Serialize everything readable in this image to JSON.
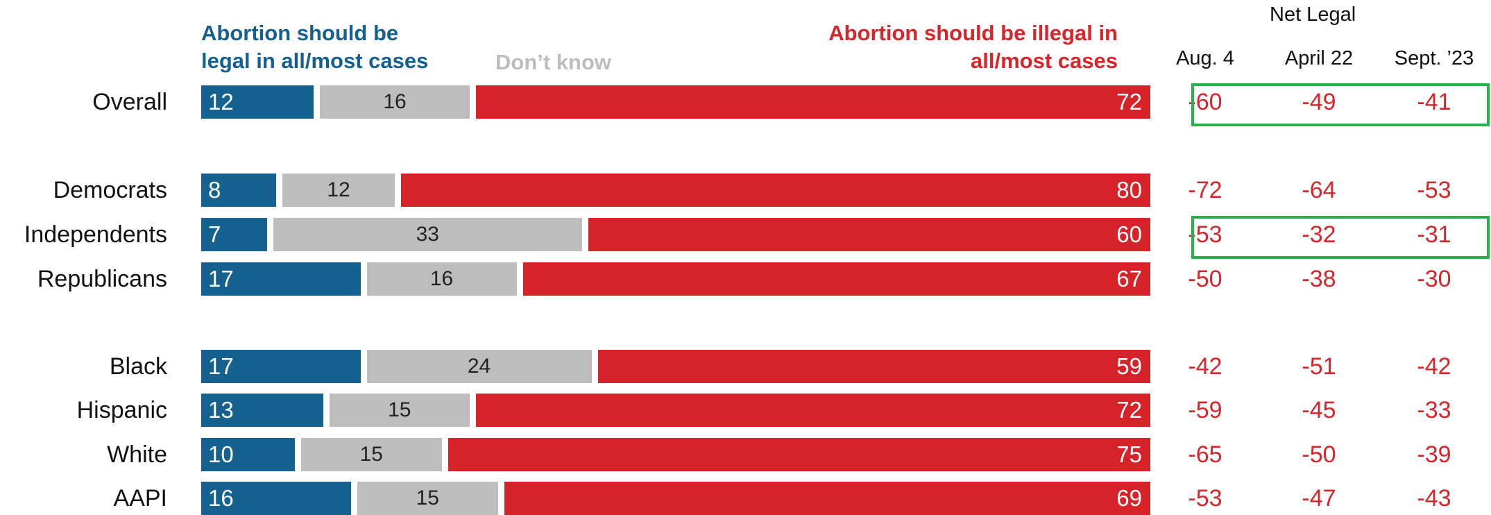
{
  "legend": {
    "legal_line1": "Abortion should be",
    "legal_line2": "legal in all/most cases",
    "dont_know": "Don’t know",
    "illegal_line1": "Abortion should be illegal in",
    "illegal_line2": "all/most cases"
  },
  "net_legal": {
    "title": "Net Legal",
    "columns": [
      "Aug. 4",
      "April 22",
      "Sept. ’23"
    ]
  },
  "colors": {
    "legal": "#156190",
    "dont_know": "#bdbdbd",
    "illegal": "#d52329",
    "net_value_text": "#d6262b",
    "highlight_box": "#28b04a"
  },
  "chart_data": {
    "type": "bar",
    "orientation": "horizontal",
    "stacked": true,
    "categories": [
      "Overall",
      "Democrats",
      "Independents",
      "Republicans",
      "Black",
      "Hispanic",
      "White",
      "AAPI"
    ],
    "series": [
      {
        "name": "Abortion should be legal in all/most cases",
        "values": [
          12,
          8,
          7,
          17,
          17,
          13,
          10,
          16
        ]
      },
      {
        "name": "Don’t know",
        "values": [
          16,
          12,
          33,
          16,
          24,
          15,
          15,
          15
        ]
      },
      {
        "name": "Abortion should be illegal in all/most cases",
        "values": [
          72,
          80,
          60,
          67,
          59,
          72,
          75,
          69
        ]
      }
    ],
    "net_legal_table": {
      "columns": [
        "Aug. 4",
        "April 22",
        "Sept. ’23"
      ],
      "rows": [
        [
          "-60",
          "-49",
          "-41"
        ],
        [
          "-72",
          "-64",
          "-53"
        ],
        [
          "-53",
          "-32",
          "-31"
        ],
        [
          "-50",
          "-38",
          "-30"
        ],
        [
          "-42",
          "-51",
          "-42"
        ],
        [
          "-59",
          "-45",
          "-33"
        ],
        [
          "-65",
          "-50",
          "-39"
        ],
        [
          "-53",
          "-47",
          "-43"
        ]
      ]
    },
    "highlighted_rows": [
      "Overall",
      "Independents"
    ]
  }
}
